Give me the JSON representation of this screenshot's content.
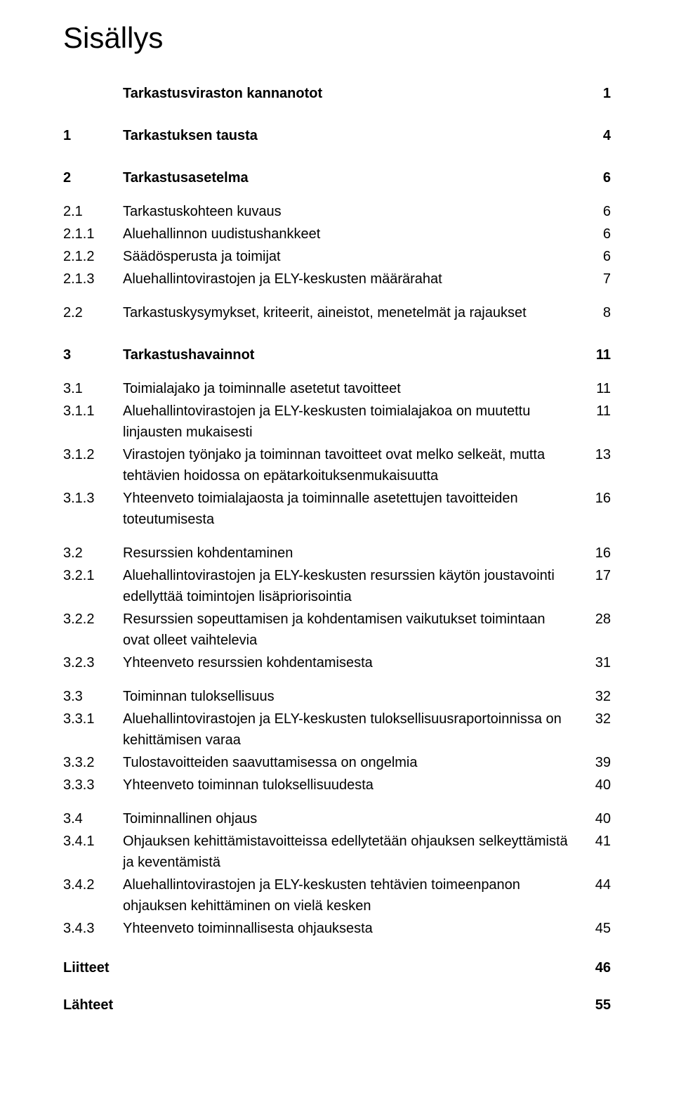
{
  "title": "Sisällys",
  "entries": [
    {
      "num": "",
      "label": "Tarkastusviraston kannanotot",
      "page": "1",
      "bold": true,
      "gap": "none",
      "level": 1
    },
    {
      "num": "1",
      "label": "Tarkastuksen tausta",
      "page": "4",
      "bold": true,
      "gap": "lg",
      "level": 1
    },
    {
      "num": "2",
      "label": "Tarkastusasetelma",
      "page": "6",
      "bold": true,
      "gap": "lg",
      "level": 1
    },
    {
      "num": "2.1",
      "label": "Tarkastuskohteen kuvaus",
      "page": "6",
      "bold": false,
      "gap": "md",
      "level": 2
    },
    {
      "num": "2.1.1",
      "label": "Aluehallinnon uudistushankkeet",
      "page": "6",
      "bold": false,
      "gap": "sm",
      "level": 3
    },
    {
      "num": "2.1.2",
      "label": "Säädösperusta ja toimijat",
      "page": "6",
      "bold": false,
      "gap": "sm",
      "level": 3
    },
    {
      "num": "2.1.3",
      "label": "Aluehallintovirastojen ja ELY-keskusten määrärahat",
      "page": "7",
      "bold": false,
      "gap": "sm",
      "level": 3
    },
    {
      "num": "2.2",
      "label": "Tarkastuskysymykset, kriteerit, aineistot, menetelmät ja rajaukset",
      "page": "8",
      "bold": false,
      "gap": "md",
      "level": 2
    },
    {
      "num": "3",
      "label": "Tarkastushavainnot",
      "page": "11",
      "bold": true,
      "gap": "lg",
      "level": 1
    },
    {
      "num": "3.1",
      "label": "Toimialajako ja toiminnalle asetetut tavoitteet",
      "page": "11",
      "bold": false,
      "gap": "md",
      "level": 2
    },
    {
      "num": "3.1.1",
      "label": "Aluehallintovirastojen ja ELY-keskusten toimialajakoa on muutettu linjausten mukaisesti",
      "page": "11",
      "bold": false,
      "gap": "sm",
      "level": 3
    },
    {
      "num": "3.1.2",
      "label": "Virastojen työnjako ja toiminnan tavoitteet ovat melko selkeät, mutta tehtävien hoidossa on epätarkoituksenmukaisuutta",
      "page": "13",
      "bold": false,
      "gap": "sm",
      "level": 3
    },
    {
      "num": "3.1.3",
      "label": "Yhteenveto toimialajaosta ja toiminnalle asetettujen tavoitteiden toteutumisesta",
      "page": "16",
      "bold": false,
      "gap": "sm",
      "level": 3
    },
    {
      "num": "3.2",
      "label": "Resurssien kohdentaminen",
      "page": "16",
      "bold": false,
      "gap": "md",
      "level": 2
    },
    {
      "num": "3.2.1",
      "label": "Aluehallintovirastojen ja ELY-keskusten resurssien käytön joustavointi edellyttää toimintojen lisäpriorisointia",
      "page": "17",
      "bold": false,
      "gap": "sm",
      "level": 3
    },
    {
      "num": "3.2.2",
      "label": "Resurssien sopeuttamisen ja kohdentamisen vaikutukset toimintaan ovat olleet vaihtelevia",
      "page": "28",
      "bold": false,
      "gap": "sm",
      "level": 3
    },
    {
      "num": "3.2.3",
      "label": "Yhteenveto resurssien kohdentamisesta",
      "page": "31",
      "bold": false,
      "gap": "sm",
      "level": 3
    },
    {
      "num": "3.3",
      "label": "Toiminnan tuloksellisuus",
      "page": "32",
      "bold": false,
      "gap": "md",
      "level": 2
    },
    {
      "num": "3.3.1",
      "label": "Aluehallintovirastojen ja ELY-keskusten tuloksellisuusraportoinnissa on kehittämisen varaa",
      "page": "32",
      "bold": false,
      "gap": "sm",
      "level": 3
    },
    {
      "num": "3.3.2",
      "label": "Tulostavoitteiden saavuttamisessa on ongelmia",
      "page": "39",
      "bold": false,
      "gap": "sm",
      "level": 3
    },
    {
      "num": "3.3.3",
      "label": "Yhteenveto toiminnan tuloksellisuudesta",
      "page": "40",
      "bold": false,
      "gap": "sm",
      "level": 3
    },
    {
      "num": "3.4",
      "label": "Toiminnallinen ohjaus",
      "page": "40",
      "bold": false,
      "gap": "md",
      "level": 2
    },
    {
      "num": "3.4.1",
      "label": "Ohjauksen kehittämistavoitteissa edellytetään ohjauksen selkeyttämistä ja keventämistä",
      "page": "41",
      "bold": false,
      "gap": "sm",
      "level": 3
    },
    {
      "num": "3.4.2",
      "label": "Aluehallintovirastojen ja ELY-keskusten tehtävien toimeenpanon ohjauksen kehittäminen on vielä kesken",
      "page": "44",
      "bold": false,
      "gap": "sm",
      "level": 3
    },
    {
      "num": "3.4.3",
      "label": "Yhteenveto toiminnallisesta ohjauksesta",
      "page": "45",
      "bold": false,
      "gap": "sm",
      "level": 3
    }
  ],
  "footer": [
    {
      "label": "Liitteet",
      "page": "46"
    },
    {
      "label": "Lähteet",
      "page": "55"
    }
  ],
  "style": {
    "background_color": "#ffffff",
    "text_color": "#000000",
    "title_fontsize": 42,
    "body_fontsize": 20,
    "font_family": "Arial, Helvetica, sans-serif"
  }
}
